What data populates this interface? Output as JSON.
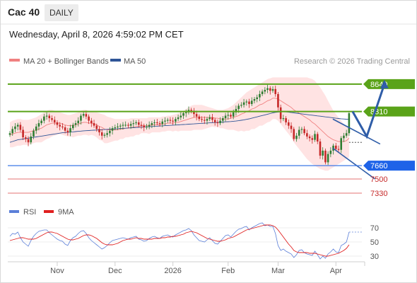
{
  "header": {
    "instrument": "Cac 40",
    "timeframe": "DAILY",
    "datetime": "Wednesday, April 8, 2026 4:59:02 PM CET"
  },
  "legend": {
    "ma20_bb": "MA 20 + Bollinger Bands",
    "ma50": "MA 50",
    "copyright": "Research © 2026 Trading Central"
  },
  "rsi_legend": {
    "rsi": "RSI",
    "ma": "9MA"
  },
  "colors": {
    "up": "#2f7d32",
    "down": "#c62828",
    "ma20": "#f08080",
    "ma50": "#2f5597",
    "band": "#ffd9d9",
    "green_line": "#5aa319",
    "blue_line": "#3b78e7",
    "red_line": "#e57373",
    "arrow": "#2f5da8",
    "rsi": "#5b7fd8",
    "rsi_ma": "#e02020"
  },
  "chart_data": [
    {
      "type": "candlestick",
      "ylim": [
        7100,
        8800
      ],
      "x_ticks": [
        {
          "label": "Nov",
          "index": 18
        },
        {
          "label": "Dec",
          "index": 40
        },
        {
          "label": "2026",
          "index": 62
        },
        {
          "label": "Feb",
          "index": 83
        },
        {
          "label": "Mar",
          "index": 102
        },
        {
          "label": "Apr",
          "index": 124
        }
      ],
      "levels": [
        {
          "label": "8640",
          "value": 8640,
          "kind": "resistance"
        },
        {
          "label": "8310",
          "value": 8310,
          "kind": "resistance"
        },
        {
          "label": "7660",
          "value": 7660,
          "kind": "pivot"
        },
        {
          "label": "7500",
          "value": 7500,
          "kind": "support"
        },
        {
          "label": "7330",
          "value": 7330,
          "kind": "support"
        }
      ],
      "closes": [
        8050,
        8100,
        8130,
        8150,
        8090,
        8000,
        7980,
        7940,
        8010,
        8080,
        8130,
        8170,
        8200,
        8250,
        8260,
        8230,
        8210,
        8180,
        8150,
        8130,
        8120,
        8080,
        8060,
        8110,
        8150,
        8170,
        8200,
        8260,
        8280,
        8250,
        8200,
        8170,
        8140,
        8100,
        8060,
        8020,
        8030,
        8050,
        8080,
        8110,
        8120,
        8130,
        8140,
        8150,
        8150,
        8140,
        8160,
        8170,
        8180,
        8150,
        8140,
        8120,
        8130,
        8150,
        8170,
        8180,
        8170,
        8160,
        8190,
        8200,
        8210,
        8200,
        8190,
        8220,
        8240,
        8260,
        8290,
        8300,
        8330,
        8320,
        8280,
        8250,
        8220,
        8210,
        8200,
        8220,
        8240,
        8210,
        8180,
        8170,
        8200,
        8230,
        8260,
        8270,
        8250,
        8300,
        8340,
        8380,
        8390,
        8420,
        8430,
        8400,
        8440,
        8460,
        8480,
        8520,
        8550,
        8570,
        8590,
        8560,
        8580,
        8520,
        8360,
        8220,
        8230,
        8180,
        8140,
        8100,
        7980,
        8020,
        8090,
        8100,
        8050,
        8010,
        7990,
        7970,
        8040,
        7950,
        7780,
        7840,
        7700,
        7800,
        7840,
        7900,
        7860,
        7850,
        7990,
        8020,
        8050,
        8290
      ],
      "ma20": [
        8030,
        8040,
        8050,
        8060,
        8060,
        8060,
        8060,
        8060,
        8070,
        8080,
        8090,
        8100,
        8110,
        8130,
        8150,
        8160,
        8170,
        8170,
        8170,
        8170,
        8160,
        8150,
        8140,
        8140,
        8140,
        8150,
        8160,
        8170,
        8180,
        8180,
        8170,
        8170,
        8160,
        8150,
        8130,
        8120,
        8100,
        8090,
        8090,
        8090,
        8090,
        8090,
        8100,
        8100,
        8110,
        8110,
        8120,
        8120,
        8130,
        8130,
        8140,
        8140,
        8140,
        8140,
        8150,
        8150,
        8150,
        8150,
        8160,
        8160,
        8170,
        8170,
        8170,
        8180,
        8180,
        8190,
        8200,
        8210,
        8220,
        8230,
        8240,
        8240,
        8240,
        8240,
        8240,
        8240,
        8240,
        8240,
        8230,
        8230,
        8220,
        8220,
        8220,
        8220,
        8230,
        8240,
        8250,
        8260,
        8280,
        8290,
        8310,
        8320,
        8340,
        8350,
        8370,
        8390,
        8400,
        8420,
        8440,
        8450,
        8470,
        8470,
        8460,
        8440,
        8420,
        8400,
        8380,
        8360,
        8330,
        8310,
        8290,
        8270,
        8250,
        8230,
        8210,
        8180,
        8160,
        8130,
        8100,
        8070,
        8040,
        8010,
        7990,
        7970,
        7960,
        7950,
        7950,
        7950,
        7960,
        7990
      ],
      "ma50": [
        7940,
        7950,
        7960,
        7970,
        7975,
        7980,
        7985,
        7990,
        7995,
        8000,
        8005,
        8010,
        8015,
        8020,
        8025,
        8030,
        8035,
        8040,
        8045,
        8050,
        8055,
        8058,
        8060,
        8063,
        8066,
        8069,
        8072,
        8075,
        8078,
        8080,
        8082,
        8084,
        8086,
        8088,
        8090,
        8092,
        8094,
        8096,
        8098,
        8100,
        8102,
        8104,
        8106,
        8108,
        8110,
        8112,
        8114,
        8116,
        8118,
        8120,
        8122,
        8124,
        8126,
        8128,
        8130,
        8132,
        8134,
        8136,
        8138,
        8140,
        8142,
        8144,
        8146,
        8148,
        8150,
        8152,
        8154,
        8156,
        8158,
        8160,
        8162,
        8164,
        8166,
        8168,
        8170,
        8172,
        8174,
        8176,
        8178,
        8180,
        8182,
        8184,
        8186,
        8188,
        8190,
        8193,
        8196,
        8200,
        8205,
        8210,
        8216,
        8222,
        8230,
        8238,
        8246,
        8254,
        8262,
        8270,
        8278,
        8286,
        8294,
        8300,
        8304,
        8306,
        8306,
        8305,
        8302,
        8298,
        8294,
        8290,
        8286,
        8282,
        8278,
        8274,
        8270,
        8266,
        8262,
        8258,
        8254,
        8250,
        8246,
        8242,
        8238,
        8234,
        8230,
        8226,
        8223,
        8220,
        8218,
        8216
      ],
      "bb_upper": [
        8180,
        8200,
        8210,
        8220,
        8220,
        8210,
        8210,
        8210,
        8220,
        8230,
        8240,
        8260,
        8280,
        8300,
        8320,
        8330,
        8330,
        8320,
        8310,
        8300,
        8290,
        8280,
        8270,
        8270,
        8280,
        8290,
        8300,
        8320,
        8330,
        8330,
        8320,
        8310,
        8300,
        8300,
        8290,
        8280,
        8270,
        8250,
        8240,
        8230,
        8220,
        8220,
        8220,
        8220,
        8220,
        8220,
        8230,
        8230,
        8230,
        8230,
        8230,
        8230,
        8230,
        8240,
        8240,
        8240,
        8240,
        8240,
        8250,
        8250,
        8260,
        8260,
        8270,
        8280,
        8290,
        8300,
        8320,
        8340,
        8360,
        8380,
        8390,
        8390,
        8390,
        8390,
        8380,
        8370,
        8360,
        8350,
        8340,
        8330,
        8330,
        8330,
        8340,
        8350,
        8370,
        8390,
        8420,
        8450,
        8480,
        8510,
        8540,
        8560,
        8580,
        8600,
        8620,
        8640,
        8660,
        8680,
        8700,
        8710,
        8720,
        8720,
        8720,
        8720,
        8720,
        8720,
        8720,
        8720,
        8720,
        8720,
        8720,
        8720,
        8720,
        8720,
        8710,
        8700,
        8680,
        8640,
        8600,
        8550,
        8500,
        8440,
        8380,
        8320,
        8280,
        8240,
        8200,
        8160,
        8130,
        8110
      ],
      "bb_lower": [
        7880,
        7880,
        7890,
        7900,
        7900,
        7910,
        7910,
        7910,
        7920,
        7930,
        7940,
        7940,
        7940,
        7960,
        7980,
        7990,
        8010,
        8020,
        8030,
        8040,
        8030,
        8020,
        8010,
        8010,
        8000,
        8010,
        8020,
        8020,
        8030,
        8030,
        8020,
        8030,
        8020,
        8000,
        7970,
        7960,
        7930,
        7930,
        7940,
        7950,
        7960,
        7960,
        7980,
        7980,
        8000,
        8000,
        8010,
        8010,
        8030,
        8030,
        8050,
        8050,
        8050,
        8040,
        8060,
        8060,
        8060,
        8060,
        8070,
        8070,
        8080,
        8080,
        8070,
        8080,
        8070,
        8080,
        8080,
        8080,
        8080,
        8080,
        8090,
        8090,
        8090,
        8090,
        8100,
        8110,
        8120,
        8130,
        8120,
        8130,
        8110,
        8110,
        8100,
        8090,
        8090,
        8090,
        8080,
        8070,
        8080,
        8070,
        8080,
        8080,
        8100,
        8100,
        8120,
        8140,
        8140,
        8160,
        8180,
        8190,
        8220,
        8220,
        8200,
        8160,
        8120,
        8080,
        8040,
        8000,
        7940,
        7900,
        7860,
        7820,
        7780,
        7740,
        7710,
        7680,
        7660,
        7640,
        7620,
        7610,
        7600,
        7600,
        7620,
        7640,
        7660,
        7680,
        7700,
        7720,
        7740,
        7760
      ],
      "scenario_arrow": [
        [
          8310,
          0
        ],
        [
          8010,
          4
        ],
        [
          8640,
          9
        ]
      ],
      "trend_lines": [
        {
          "from": [
            7870,
            0
          ],
          "to": [
            7500,
            16
          ]
        },
        {
          "from": [
            8220,
            0
          ],
          "to": [
            7920,
            18
          ]
        }
      ]
    },
    {
      "type": "line",
      "ylim": [
        20,
        80
      ],
      "y_ticks": [
        70,
        50,
        30
      ],
      "rsi": [
        58,
        62,
        61,
        64,
        56,
        50,
        47,
        44,
        52,
        58,
        62,
        65,
        66,
        67,
        67,
        63,
        60,
        57,
        54,
        52,
        51,
        47,
        45,
        52,
        56,
        58,
        62,
        65,
        66,
        62,
        56,
        52,
        49,
        46,
        43,
        40,
        42,
        45,
        49,
        52,
        53,
        54,
        55,
        56,
        55,
        54,
        56,
        57,
        58,
        54,
        53,
        51,
        52,
        55,
        57,
        58,
        56,
        55,
        58,
        59,
        60,
        58,
        57,
        60,
        62,
        64,
        66,
        67,
        69,
        66,
        60,
        56,
        52,
        51,
        50,
        53,
        56,
        52,
        48,
        47,
        51,
        55,
        59,
        60,
        57,
        61,
        65,
        68,
        69,
        71,
        72,
        67,
        70,
        72,
        74,
        76,
        77,
        73,
        74,
        72,
        72,
        62,
        45,
        38,
        40,
        37,
        35,
        33,
        28,
        32,
        38,
        39,
        35,
        33,
        32,
        31,
        37,
        32,
        26,
        30,
        27,
        33,
        36,
        40,
        36,
        35,
        45,
        47,
        50,
        64
      ],
      "rsi_ma": [
        52,
        53,
        54,
        55,
        56,
        56,
        55,
        54,
        54,
        54,
        55,
        57,
        59,
        61,
        63,
        64,
        64,
        63,
        62,
        60,
        58,
        56,
        54,
        53,
        53,
        54,
        55,
        57,
        59,
        60,
        60,
        59,
        57,
        55,
        52,
        49,
        47,
        46,
        46,
        46,
        47,
        48,
        50,
        52,
        53,
        54,
        54,
        55,
        56,
        55,
        55,
        54,
        54,
        54,
        54,
        55,
        55,
        55,
        56,
        56,
        57,
        57,
        58,
        58,
        59,
        60,
        61,
        63,
        64,
        65,
        64,
        63,
        61,
        59,
        57,
        55,
        54,
        53,
        52,
        51,
        51,
        52,
        53,
        55,
        56,
        57,
        59,
        61,
        63,
        65,
        67,
        68,
        69,
        70,
        71,
        72,
        73,
        74,
        74,
        74,
        73,
        71,
        67,
        62,
        57,
        52,
        47,
        43,
        38,
        36,
        35,
        35,
        35,
        35,
        34,
        34,
        34,
        33,
        32,
        31,
        30,
        30,
        31,
        32,
        33,
        34,
        36,
        38,
        41,
        46
      ]
    }
  ]
}
